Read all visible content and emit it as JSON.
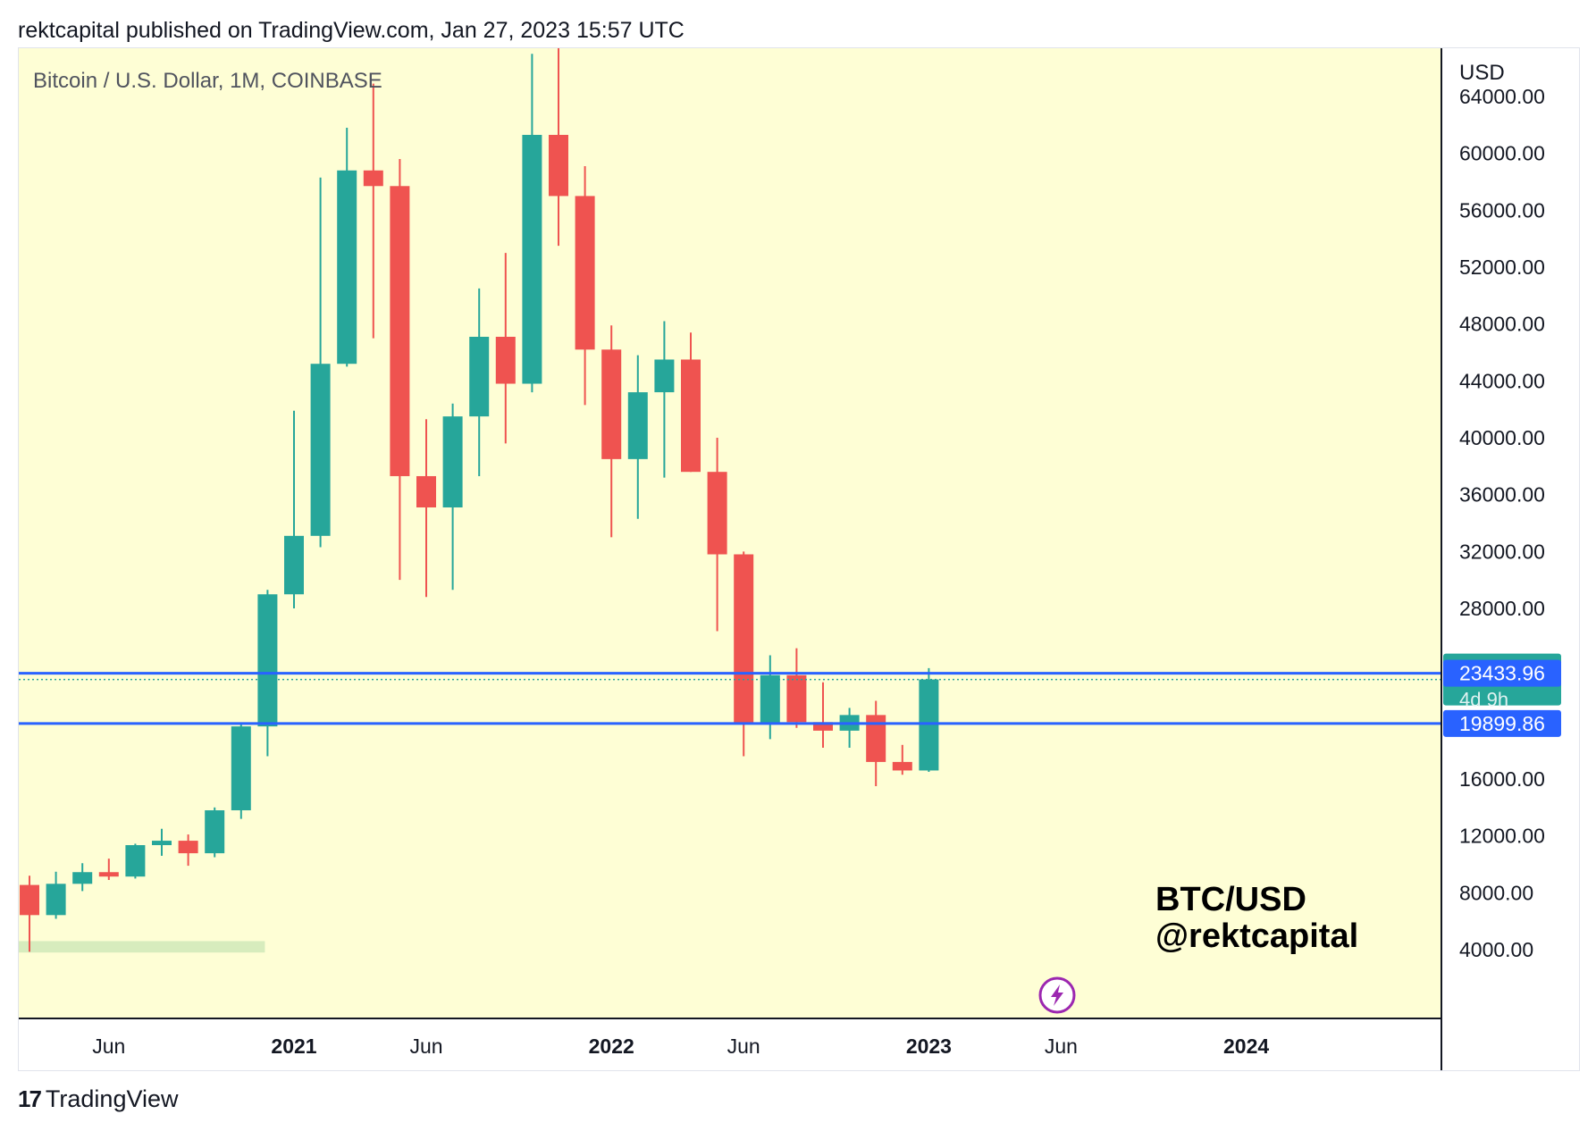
{
  "header": {
    "publisher_line": "rektcapital published on TradingView.com, Jan 27, 2023 15:57 UTC"
  },
  "footer": {
    "brand": "TradingView",
    "logo_glyph": "17"
  },
  "colors": {
    "background": "#fefed5",
    "up": "#26a69a",
    "down": "#ef5350",
    "level_line": "#2962ff",
    "support_zone": "#d7ecbd"
  },
  "icons": {
    "flash": "lightning-icon"
  },
  "chart_data": {
    "type": "candlestick",
    "title": "Bitcoin / U.S. Dollar, 1M, COINBASE",
    "watermark": [
      "BTC/USD",
      "@rektcapital"
    ],
    "y_axis_label": "USD",
    "ylim": [
      2000,
      68000
    ],
    "x_ticks": [
      {
        "label": "Jun",
        "bold": false,
        "date": "2020-06"
      },
      {
        "label": "2021",
        "bold": true,
        "date": "2021-01"
      },
      {
        "label": "Jun",
        "bold": false,
        "date": "2021-06"
      },
      {
        "label": "2022",
        "bold": true,
        "date": "2022-01"
      },
      {
        "label": "Jun",
        "bold": false,
        "date": "2022-06"
      },
      {
        "label": "2023",
        "bold": true,
        "date": "2023-01"
      },
      {
        "label": "Jun",
        "bold": false,
        "date": "2023-06"
      },
      {
        "label": "2024",
        "bold": true,
        "date": "2024-01"
      }
    ],
    "y_ticks": [
      "64000.00",
      "60000.00",
      "56000.00",
      "52000.00",
      "48000.00",
      "44000.00",
      "40000.00",
      "36000.00",
      "32000.00",
      "28000.00",
      "16000.00",
      "12000.00",
      "8000.00",
      "4000.00"
    ],
    "y_tick_values": [
      64000,
      60000,
      56000,
      52000,
      48000,
      44000,
      40000,
      36000,
      32000,
      28000,
      16000,
      12000,
      8000,
      4000
    ],
    "levels": [
      {
        "label": "23433.96",
        "value": 23433.96
      },
      {
        "label": "19899.86",
        "value": 19899.86
      }
    ],
    "current_price": {
      "label": "22999.82",
      "value": 22999.82,
      "countdown": "4d 9h"
    },
    "support_zone": {
      "start": "2020-03",
      "end": "2020-12",
      "low": 3800,
      "high": 4600
    },
    "candles": [
      {
        "date": "2020-03",
        "open": 8550,
        "high": 9200,
        "low": 3850,
        "close": 6430
      },
      {
        "date": "2020-04",
        "open": 6430,
        "high": 9480,
        "low": 6170,
        "close": 8630
      },
      {
        "date": "2020-05",
        "open": 8630,
        "high": 10080,
        "low": 8120,
        "close": 9450
      },
      {
        "date": "2020-06",
        "open": 9450,
        "high": 10400,
        "low": 8900,
        "close": 9140
      },
      {
        "date": "2020-07",
        "open": 9140,
        "high": 11450,
        "low": 9000,
        "close": 11350
      },
      {
        "date": "2020-08",
        "open": 11350,
        "high": 12500,
        "low": 10600,
        "close": 11660
      },
      {
        "date": "2020-09",
        "open": 11660,
        "high": 12100,
        "low": 9900,
        "close": 10780
      },
      {
        "date": "2020-10",
        "open": 10780,
        "high": 14000,
        "low": 10500,
        "close": 13800
      },
      {
        "date": "2020-11",
        "open": 13800,
        "high": 19900,
        "low": 13200,
        "close": 19700
      },
      {
        "date": "2020-12",
        "open": 19700,
        "high": 29300,
        "low": 17600,
        "close": 28990
      },
      {
        "date": "2021-01",
        "open": 28990,
        "high": 41900,
        "low": 28000,
        "close": 33100
      },
      {
        "date": "2021-02",
        "open": 33100,
        "high": 58300,
        "low": 32300,
        "close": 45200
      },
      {
        "date": "2021-03",
        "open": 45200,
        "high": 61800,
        "low": 45000,
        "close": 58800
      },
      {
        "date": "2021-04",
        "open": 58800,
        "high": 64900,
        "low": 47000,
        "close": 57700
      },
      {
        "date": "2021-05",
        "open": 57700,
        "high": 59600,
        "low": 30000,
        "close": 37300
      },
      {
        "date": "2021-06",
        "open": 37300,
        "high": 41300,
        "low": 28800,
        "close": 35100
      },
      {
        "date": "2021-07",
        "open": 35100,
        "high": 42400,
        "low": 29300,
        "close": 41500
      },
      {
        "date": "2021-08",
        "open": 41500,
        "high": 50500,
        "low": 37300,
        "close": 47100
      },
      {
        "date": "2021-09",
        "open": 47100,
        "high": 53000,
        "low": 39600,
        "close": 43800
      },
      {
        "date": "2021-10",
        "open": 43800,
        "high": 67000,
        "low": 43200,
        "close": 61300
      },
      {
        "date": "2021-11",
        "open": 61300,
        "high": 69000,
        "low": 53500,
        "close": 57000
      },
      {
        "date": "2021-12",
        "open": 57000,
        "high": 59100,
        "low": 42300,
        "close": 46200
      },
      {
        "date": "2022-01",
        "open": 46200,
        "high": 47900,
        "low": 33000,
        "close": 38500
      },
      {
        "date": "2022-02",
        "open": 38500,
        "high": 45800,
        "low": 34300,
        "close": 43200
      },
      {
        "date": "2022-03",
        "open": 43200,
        "high": 48200,
        "low": 37200,
        "close": 45500
      },
      {
        "date": "2022-04",
        "open": 45500,
        "high": 47400,
        "low": 37600,
        "close": 37600
      },
      {
        "date": "2022-05",
        "open": 37600,
        "high": 40000,
        "low": 26400,
        "close": 31800
      },
      {
        "date": "2022-06",
        "open": 31800,
        "high": 32000,
        "low": 17600,
        "close": 19900
      },
      {
        "date": "2022-07",
        "open": 19900,
        "high": 24700,
        "low": 18800,
        "close": 23300
      },
      {
        "date": "2022-08",
        "open": 23300,
        "high": 25200,
        "low": 19600,
        "close": 20000
      },
      {
        "date": "2022-09",
        "open": 20000,
        "high": 22800,
        "low": 18200,
        "close": 19400
      },
      {
        "date": "2022-10",
        "open": 19400,
        "high": 21000,
        "low": 18200,
        "close": 20500
      },
      {
        "date": "2022-11",
        "open": 20500,
        "high": 21500,
        "low": 15500,
        "close": 17200
      },
      {
        "date": "2022-12",
        "open": 17200,
        "high": 18400,
        "low": 16300,
        "close": 16600
      },
      {
        "date": "2023-01",
        "open": 16600,
        "high": 23800,
        "low": 16500,
        "close": 23000
      }
    ]
  }
}
